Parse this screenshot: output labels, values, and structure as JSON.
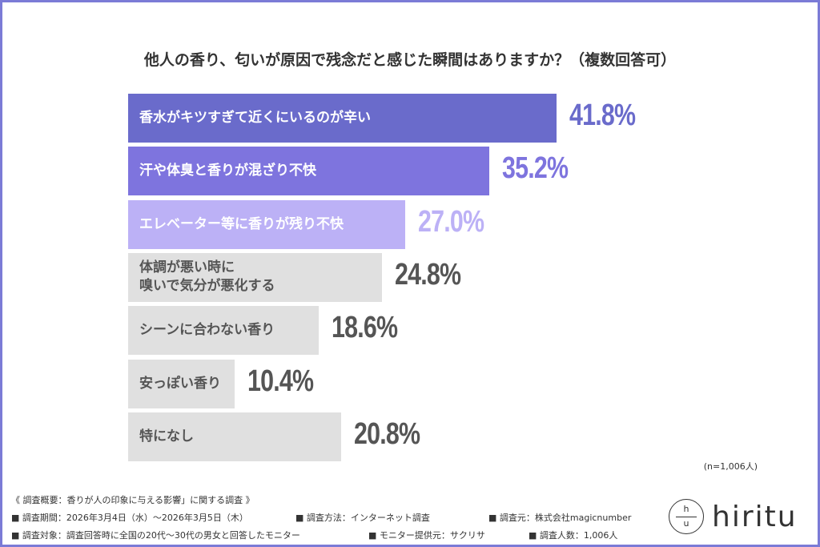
{
  "chart_data": {
    "type": "bar",
    "orientation": "horizontal",
    "title": "他人の香り、匂いが原因で残念だと感じた瞬間はありますか？（複数回答可）",
    "categories": [
      "香水がキツすぎて近くにいるのが辛い",
      "汗や体臭と香りが混ざり不快",
      "エレベーター等に香りが残り不快",
      "体調が悪い時に\n嗅いで気分が悪化する",
      "シーンに合わない香り",
      "安っぽい香り",
      "特になし"
    ],
    "values": [
      41.8,
      35.2,
      27.0,
      24.8,
      18.6,
      10.4,
      20.8
    ],
    "value_labels": [
      "41.8%",
      "35.2%",
      "27.0%",
      "24.8%",
      "18.6%",
      "10.4%",
      "20.8%"
    ],
    "bar_colors": [
      "#6a6bcb",
      "#7e74de",
      "#bcb1f6",
      "#e0e0e0",
      "#e0e0e0",
      "#e0e0e0",
      "#e0e0e0"
    ],
    "label_colors": [
      "#ffffff",
      "#ffffff",
      "#ffffff",
      "#555555",
      "#555555",
      "#555555",
      "#555555"
    ],
    "value_colors": [
      "#6a6bcb",
      "#7e74de",
      "#bcb1f6",
      "#555555",
      "#555555",
      "#555555",
      "#555555"
    ],
    "note": "(n=1,006人)"
  },
  "footer": {
    "heading": "《 調査概要：香りが人の印象に与える影響」に関する調査 》",
    "period": "■ 調査期間：2026年3月4日（水）～2026年3月5日（木）",
    "method": "■ 調査方法：インターネット調査",
    "source": "■ 調査元：株式会社magicnumber",
    "target": "■ 調査対象：調査回答時に全国の20代～30代の男女と回答したモニター",
    "provider": "■ モニター提供元：サクリサ",
    "count": "■ 調査人数：1,006人"
  },
  "logo": {
    "mark_top": "h",
    "mark_bottom": "u",
    "text": "hiritu"
  }
}
